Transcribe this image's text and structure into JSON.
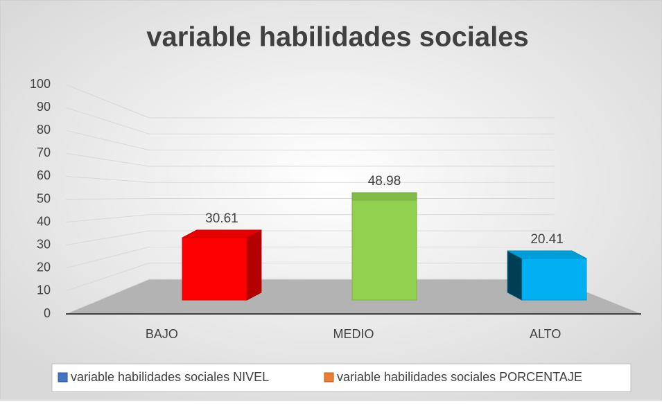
{
  "chart_data": {
    "type": "bar",
    "title": "variable habilidades sociales",
    "categories": [
      "BAJO",
      "MEDIO",
      "ALTO"
    ],
    "values": [
      30.61,
      48.98,
      20.41
    ],
    "colors": [
      "#ff0000",
      "#92d050",
      "#00b0f0"
    ],
    "ylim": [
      0,
      100
    ],
    "yticks": [
      0,
      10,
      20,
      30,
      40,
      50,
      60,
      70,
      80,
      90,
      100
    ],
    "grid": true,
    "legend": [
      {
        "name": "variable habilidades sociales NIVEL",
        "color": "#4472c4"
      },
      {
        "name": "variable habilidades sociales PORCENTAJE",
        "color": "#ed7d31"
      }
    ],
    "legend_position": "bottom"
  }
}
